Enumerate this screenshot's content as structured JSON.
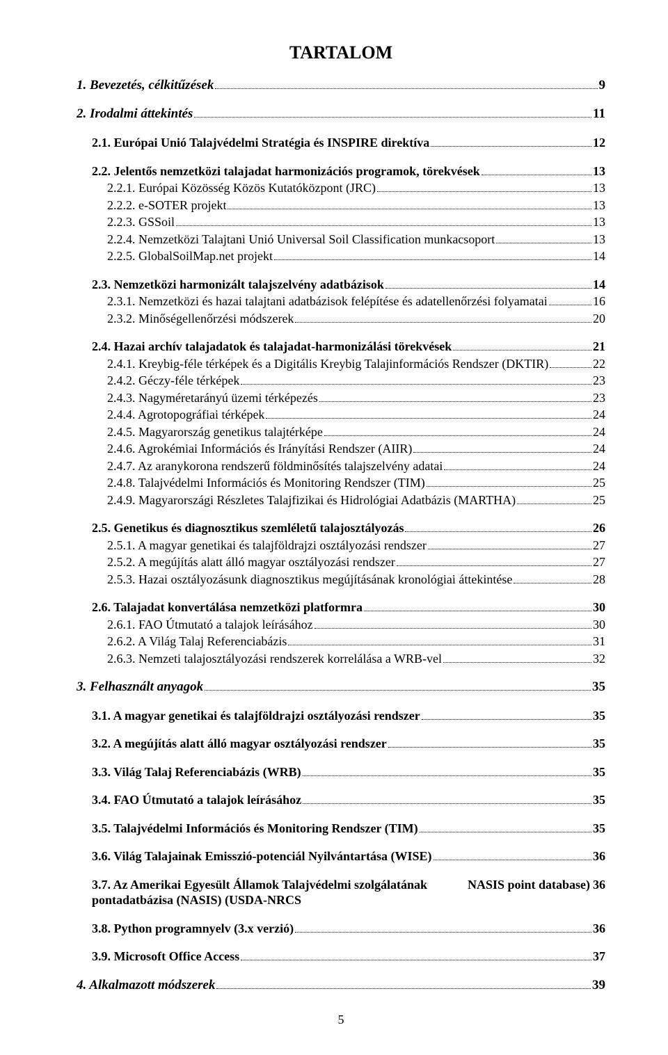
{
  "title": "TARTALOM",
  "page_number": "5",
  "toc": [
    {
      "level": "chapter",
      "label": "1.   Bevezetés, célkitűzések",
      "page": "9"
    },
    {
      "level": "chapter",
      "label": "2.   Irodalmi áttekintés",
      "page": "11"
    },
    {
      "level": "section",
      "label": "2.1. Európai Unió Talajvédelmi Stratégia és INSPIRE direktíva",
      "page": "12"
    },
    {
      "level": "section",
      "label": "2.2. Jelentős nemzetközi talajadat harmonizációs programok, törekvések",
      "page": "13"
    },
    {
      "level": "sub",
      "label": "2.2.1. Európai Közösség Közös Kutatóközpont (JRC)",
      "page": "13"
    },
    {
      "level": "sub",
      "label": "2.2.2. e-SOTER projekt",
      "page": "13"
    },
    {
      "level": "sub",
      "label": "2.2.3. GSSoil",
      "page": "13"
    },
    {
      "level": "sub",
      "label": "2.2.4. Nemzetközi Talajtani Unió Universal Soil Classification munkacsoport",
      "page": "13"
    },
    {
      "level": "sub",
      "label": "2.2.5. GlobalSoilMap.net projekt",
      "page": "14"
    },
    {
      "level": "section",
      "label": "2.3. Nemzetközi harmonizált talajszelvény adatbázisok",
      "page": "14"
    },
    {
      "level": "sub",
      "label": "2.3.1. Nemzetközi és hazai talajtani adatbázisok felépítése és adatellenőrzési folyamatai",
      "page": "16"
    },
    {
      "level": "sub",
      "label": "2.3.2. Minőségellenőrzési módszerek",
      "page": "20"
    },
    {
      "level": "section",
      "label": "2.4. Hazai archív talajadatok és talajadat-harmonizálási törekvések",
      "page": "21"
    },
    {
      "level": "sub",
      "label": "2.4.1. Kreybig-féle térképek és a Digitális Kreybig Talajinformációs Rendszer (DKTIR)",
      "page": "22"
    },
    {
      "level": "sub",
      "label": "2.4.2. Géczy-féle térképek",
      "page": "23"
    },
    {
      "level": "sub",
      "label": "2.4.3. Nagyméretarányú üzemi térképezés",
      "page": "23"
    },
    {
      "level": "sub",
      "label": "2.4.4. Agrotopográfiai térképek",
      "page": "24"
    },
    {
      "level": "sub",
      "label": "2.4.5. Magyarország genetikus talajtérképe",
      "page": "24"
    },
    {
      "level": "sub",
      "label": "2.4.6. Agrokémiai Információs és Irányítási Rendszer (AIIR)",
      "page": "24"
    },
    {
      "level": "sub",
      "label": "2.4.7. Az aranykorona rendszerű földminősítés talajszelvény adatai",
      "page": "24"
    },
    {
      "level": "sub",
      "label": "2.4.8. Talajvédelmi Információs és Monitoring Rendszer (TIM)",
      "page": "25"
    },
    {
      "level": "sub",
      "label": "2.4.9. Magyarországi Részletes Talajfizikai és Hidrológiai Adatbázis (MARTHA)",
      "page": "25"
    },
    {
      "level": "section",
      "label": "2.5. Genetikus és diagnosztikus szemléletű talajosztályozás",
      "page": "26"
    },
    {
      "level": "sub",
      "label": "2.5.1. A magyar genetikai és talajföldrajzi osztályozási rendszer",
      "page": "27"
    },
    {
      "level": "sub",
      "label": "2.5.2. A megújítás alatt álló magyar osztályozási rendszer",
      "page": "27"
    },
    {
      "level": "sub",
      "label": "2.5.3. Hazai osztályozásunk diagnosztikus megújításának kronológiai áttekintése",
      "page": "28"
    },
    {
      "level": "section",
      "label": "2.6. Talajadat konvertálása nemzetközi platformra",
      "page": "30"
    },
    {
      "level": "sub",
      "label": "2.6.1. FAO Útmutató a talajok leírásához",
      "page": "30"
    },
    {
      "level": "sub",
      "label": "2.6.2. A Világ Talaj Referenciabázis",
      "page": "31"
    },
    {
      "level": "sub",
      "label": "2.6.3. Nemzeti talajosztályozási rendszerek korrelálása a WRB-vel",
      "page": "32"
    },
    {
      "level": "chapter",
      "label": "3.   Felhasznált anyagok",
      "page": "35"
    },
    {
      "level": "section",
      "label": "3.1. A magyar genetikai és talajföldrajzi osztályozási rendszer",
      "page": "35"
    },
    {
      "level": "section",
      "label": "3.2. A megújítás alatt álló magyar osztályozási rendszer",
      "page": "35"
    },
    {
      "level": "section",
      "label": "3.3. Világ Talaj Referenciabázis (WRB)",
      "page": "35"
    },
    {
      "level": "section",
      "label": "3.4. FAO Útmutató a talajok leírásához",
      "page": "35"
    },
    {
      "level": "section",
      "label": "3.5. Talajvédelmi Információs és Monitoring Rendszer (TIM)",
      "page": "35"
    },
    {
      "level": "section",
      "label": "3.6. Világ Talajainak Emisszió-potenciál Nyilvántartása (WISE)",
      "page": "36"
    },
    {
      "level": "section",
      "label": "3.7. Az Amerikai Egyesült Államok Talajvédelmi szolgálatának pontadatbázisa (NASIS) (USDA-NRCS NASIS point database)",
      "page": "36"
    },
    {
      "level": "section",
      "label": "3.8. Python programnyelv (3.x verzió)",
      "page": "36"
    },
    {
      "level": "section",
      "label": "3.9. Microsoft Office Access",
      "page": "37"
    },
    {
      "level": "chapter",
      "label": "4.   Alkalmazott módszerek",
      "page": "39"
    }
  ]
}
